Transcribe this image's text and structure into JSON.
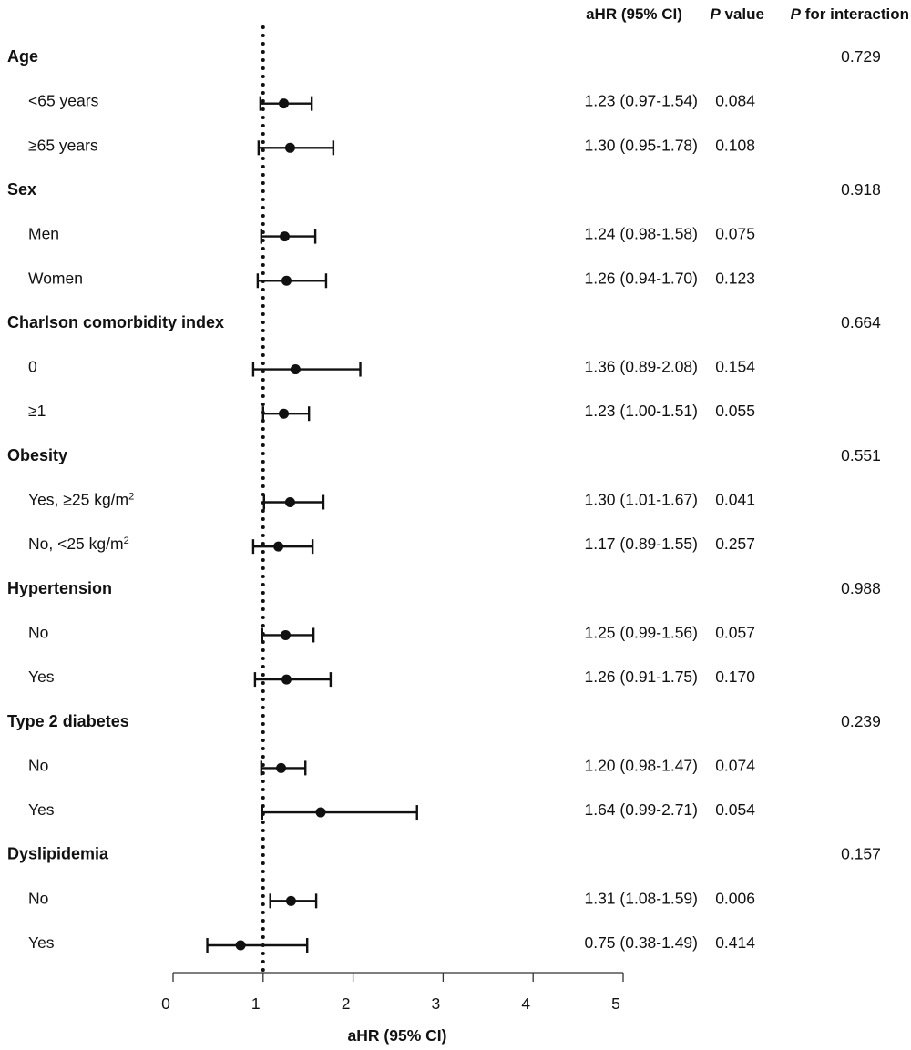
{
  "chart_data": {
    "type": "forest",
    "columns": {
      "ahr": "aHR (95% CI)",
      "p_italic": "P",
      "p_rest": " value",
      "pint_italic": "P",
      "pint_rest": " for interaction"
    },
    "reference_line": 1,
    "xlim": [
      0,
      5
    ],
    "xticks": [
      "0",
      "1",
      "2",
      "3",
      "4",
      "5"
    ],
    "xlabel": "aHR (95% CI)",
    "groups": [
      {
        "label": "Age",
        "p_interaction": "0.729",
        "rows": [
          {
            "label": "<65 years",
            "hr": 1.23,
            "lo": 0.97,
            "hi": 1.54,
            "ci_text": "1.23 (0.97-1.54)",
            "p": "0.084"
          },
          {
            "label": "≥65 years",
            "hr": 1.3,
            "lo": 0.95,
            "hi": 1.78,
            "ci_text": "1.30 (0.95-1.78)",
            "p": "0.108"
          }
        ]
      },
      {
        "label": "Sex",
        "p_interaction": "0.918",
        "rows": [
          {
            "label": "Men",
            "hr": 1.24,
            "lo": 0.98,
            "hi": 1.58,
            "ci_text": "1.24 (0.98-1.58)",
            "p": "0.075"
          },
          {
            "label": "Women",
            "hr": 1.26,
            "lo": 0.94,
            "hi": 1.7,
            "ci_text": "1.26 (0.94-1.70)",
            "p": "0.123"
          }
        ]
      },
      {
        "label": "Charlson comorbidity index",
        "p_interaction": "0.664",
        "rows": [
          {
            "label": "0",
            "hr": 1.36,
            "lo": 0.89,
            "hi": 2.08,
            "ci_text": "1.36 (0.89-2.08)",
            "p": "0.154"
          },
          {
            "label": "≥1",
            "hr": 1.23,
            "lo": 1.0,
            "hi": 1.51,
            "ci_text": "1.23 (1.00-1.51)",
            "p": "0.055"
          }
        ]
      },
      {
        "label": "Obesity",
        "p_interaction": "0.551",
        "rows": [
          {
            "label": "Yes, ≥25 kg/m",
            "sup": "2",
            "hr": 1.3,
            "lo": 1.01,
            "hi": 1.67,
            "ci_text": "1.30 (1.01-1.67)",
            "p": "0.041"
          },
          {
            "label": "No, <25 kg/m",
            "sup": "2",
            "hr": 1.17,
            "lo": 0.89,
            "hi": 1.55,
            "ci_text": "1.17 (0.89-1.55)",
            "p": "0.257"
          }
        ]
      },
      {
        "label": "Hypertension",
        "p_interaction": "0.988",
        "rows": [
          {
            "label": "No",
            "hr": 1.25,
            "lo": 0.99,
            "hi": 1.56,
            "ci_text": "1.25 (0.99-1.56)",
            "p": "0.057"
          },
          {
            "label": "Yes",
            "hr": 1.26,
            "lo": 0.91,
            "hi": 1.75,
            "ci_text": "1.26 (0.91-1.75)",
            "p": "0.170"
          }
        ]
      },
      {
        "label": "Type 2 diabetes",
        "p_interaction": "0.239",
        "rows": [
          {
            "label": "No",
            "hr": 1.2,
            "lo": 0.98,
            "hi": 1.47,
            "ci_text": "1.20 (0.98-1.47)",
            "p": "0.074"
          },
          {
            "label": "Yes",
            "hr": 1.64,
            "lo": 0.99,
            "hi": 2.71,
            "ci_text": "1.64 (0.99-2.71)",
            "p": "0.054"
          }
        ]
      },
      {
        "label": "Dyslipidemia",
        "p_interaction": "0.157",
        "rows": [
          {
            "label": "No",
            "hr": 1.31,
            "lo": 1.08,
            "hi": 1.59,
            "ci_text": "1.31 (1.08-1.59)",
            "p": "0.006"
          },
          {
            "label": "Yes",
            "hr": 0.75,
            "lo": 0.38,
            "hi": 1.49,
            "ci_text": "0.75 (0.38-1.49)",
            "p": "0.414"
          }
        ]
      }
    ]
  }
}
